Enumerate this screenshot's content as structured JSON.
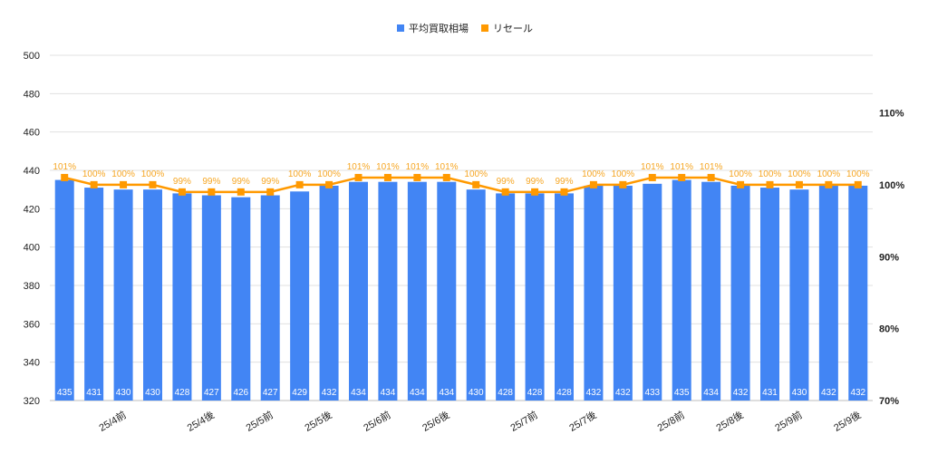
{
  "chart_data": {
    "type": "bar+line",
    "title": "",
    "legend": {
      "position": "top",
      "entries": [
        "平均買取相場",
        "リセール"
      ]
    },
    "categories": [
      "",
      "",
      "25/4前",
      "",
      "",
      "25/4後",
      "",
      "25/5前",
      "",
      "25/5後",
      "",
      "25/6前",
      "",
      "25/6後",
      "",
      "",
      "25/7前",
      "",
      "25/7後",
      "",
      "",
      "25/8前",
      "",
      "25/8後",
      "",
      "25/9前",
      "",
      "25/9後"
    ],
    "series": [
      {
        "name": "平均買取相場",
        "type": "bar",
        "axis": "left",
        "color": "#4285f4",
        "values": [
          435,
          431,
          430,
          430,
          428,
          427,
          426,
          427,
          429,
          432,
          434,
          434,
          434,
          434,
          430,
          428,
          428,
          428,
          432,
          432,
          433,
          435,
          434,
          432,
          431,
          430,
          432,
          432
        ]
      },
      {
        "name": "リセール",
        "type": "line",
        "axis": "right",
        "color": "#ff9900",
        "unit": "%",
        "values": [
          101,
          100,
          100,
          100,
          99,
          99,
          99,
          99,
          100,
          100,
          101,
          101,
          101,
          101,
          100,
          99,
          99,
          99,
          100,
          100,
          101,
          101,
          101,
          100,
          100,
          100,
          100,
          100
        ]
      }
    ],
    "left_axis": {
      "ylim": [
        320,
        500
      ],
      "ticks": [
        320,
        340,
        360,
        380,
        400,
        420,
        440,
        460,
        480,
        500
      ]
    },
    "right_axis": {
      "ylim": [
        70,
        118
      ],
      "ticks": [
        "70%",
        "80%",
        "90%",
        "100%",
        "110%"
      ],
      "tick_values": [
        70,
        80,
        90,
        100,
        110
      ]
    },
    "grid": true
  }
}
